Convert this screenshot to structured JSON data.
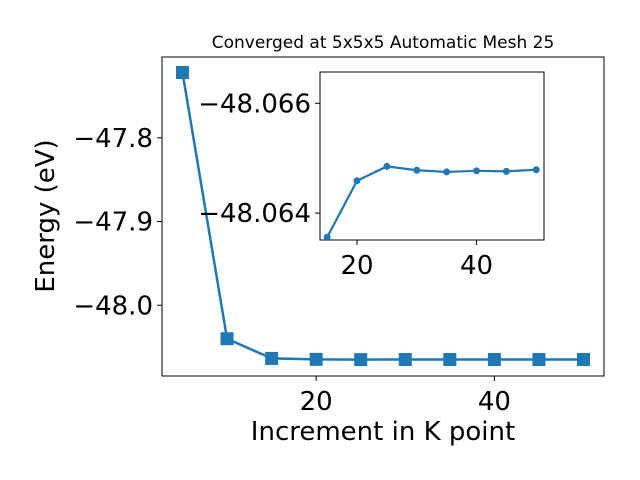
{
  "chart_data": [
    {
      "type": "line",
      "title": "Converged at 5x5x5 Automatic Mesh 25",
      "xlabel": "Increment in K point",
      "ylabel": "Energy (eV)",
      "marker": "square",
      "color": "#1f77b4",
      "x": [
        5,
        10,
        15,
        20,
        25,
        30,
        35,
        40,
        45,
        50
      ],
      "y": [
        -47.722,
        -48.04,
        -48.0635,
        -48.0646,
        -48.0649,
        -48.0648,
        -48.0648,
        -48.0648,
        -48.0648,
        -48.0648
      ],
      "xlim": [
        2.7,
        52.3
      ],
      "ylim": [
        -48.0845,
        -47.7035
      ],
      "xticks": [
        20,
        40
      ],
      "xtick_labels": [
        "20",
        "40"
      ],
      "yticks": [
        -47.8,
        -47.9,
        -48.0
      ],
      "ytick_labels": [
        "−47.8",
        "−47.9",
        "−48.0"
      ]
    },
    {
      "type": "line",
      "title": "",
      "xlabel": "",
      "ylabel": "",
      "marker": "circle",
      "color": "#1f77b4",
      "inset": true,
      "x": [
        15,
        20,
        25,
        30,
        35,
        40,
        45,
        50
      ],
      "y": [
        -48.06356,
        -48.06459,
        -48.06485,
        -48.06478,
        -48.06475,
        -48.06477,
        -48.06476,
        -48.06479
      ],
      "xlim": [
        13.8,
        51.3
      ],
      "ylim": [
        -48.06351,
        -48.06657
      ],
      "xticks": [
        20,
        40
      ],
      "xtick_labels": [
        "20",
        "40"
      ],
      "yticks": [
        -48.066,
        -48.064
      ],
      "ytick_labels": [
        "−48.066",
        "−48.064"
      ]
    }
  ]
}
